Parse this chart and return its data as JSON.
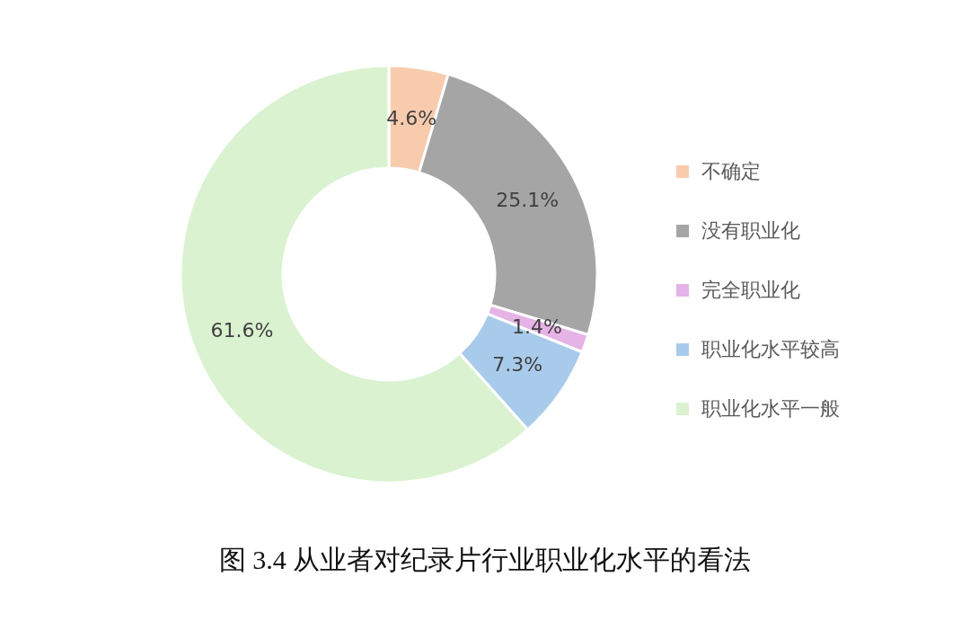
{
  "chart_data": {
    "type": "donut",
    "title": "图 3.4  从业者对纪录片行业职业化水平的看法",
    "categories": [
      "不确定",
      "没有职业化",
      "完全职业化",
      "职业化水平较高",
      "职业化水平一般"
    ],
    "values": [
      4.6,
      25.1,
      1.4,
      7.3,
      61.6
    ],
    "value_labels": [
      "4.6%",
      "25.1%",
      "1.4%",
      "7.3%",
      "61.6%"
    ],
    "colors": [
      "#f8cbad",
      "#a5a5a5",
      "#e5b3e5",
      "#a9cbeb",
      "#daf2d0"
    ],
    "legend": "right"
  }
}
